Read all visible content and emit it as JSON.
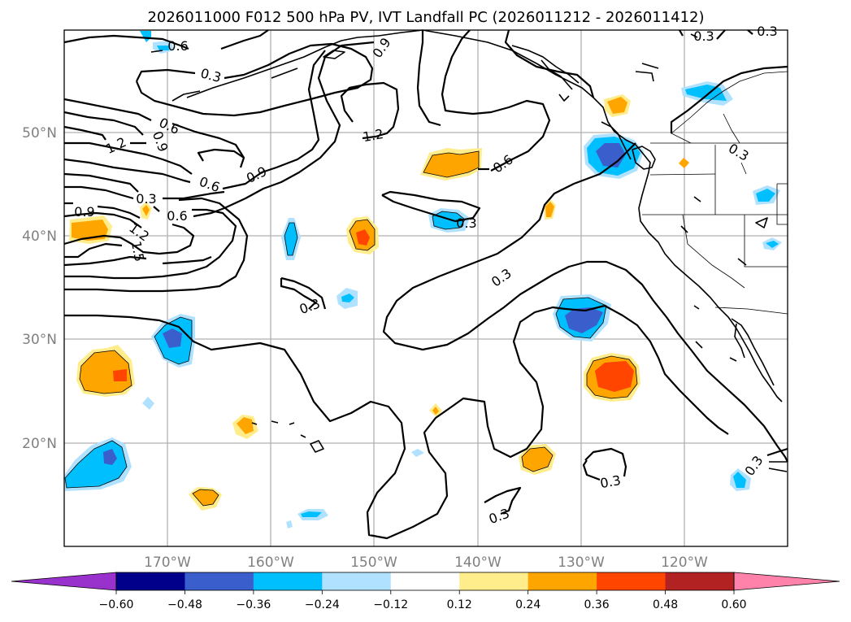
{
  "title": "2026011000 F012 500 hPa PV, IVT Landfall PC (2026011212 - 2026011412)",
  "lon_ticks": [
    "170°W",
    "160°W",
    "150°W",
    "140°W",
    "130°W",
    "120°W"
  ],
  "lat_ticks": [
    "50°N",
    "40°N",
    "30°N",
    "20°N"
  ],
  "colorbar": {
    "ticks": [
      "−0.60",
      "−0.48",
      "−0.36",
      "−0.24",
      "−0.12",
      "0.12",
      "0.24",
      "0.36",
      "0.48",
      "0.60"
    ],
    "colors": [
      "#9932cc",
      "#00008b",
      "#3a5fcd",
      "#00bfff",
      "#b0e2ff",
      "#ffffff",
      "#ffec8b",
      "#ffa500",
      "#ff4500",
      "#b22222",
      "#ff82ab"
    ]
  },
  "contour_labels": [
    "0.6",
    "0.3",
    "0.9",
    "1.2",
    "0.6",
    "0.9",
    "1.2",
    "0.9",
    "0.6",
    "0.3",
    "0.6",
    "0.9",
    "1.2",
    "1.5",
    "0.3",
    "0.3",
    "0.6",
    "0.3",
    "0.3",
    "0.3",
    "0.3",
    "0.3",
    "0.3",
    "0.3"
  ],
  "chart_data": {
    "type": "map",
    "title": "2026011000 F012 500 hPa PV, IVT Landfall PC (2026011212 - 2026011412)",
    "lon_range": [
      -180,
      -110
    ],
    "lat_range": [
      10,
      60
    ],
    "contour_levels": [
      0.3,
      0.6,
      0.9,
      1.2,
      1.5
    ],
    "fill_levels": [
      -0.6,
      -0.48,
      -0.36,
      -0.24,
      -0.12,
      0.12,
      0.24,
      0.36,
      0.48,
      0.6
    ]
  }
}
